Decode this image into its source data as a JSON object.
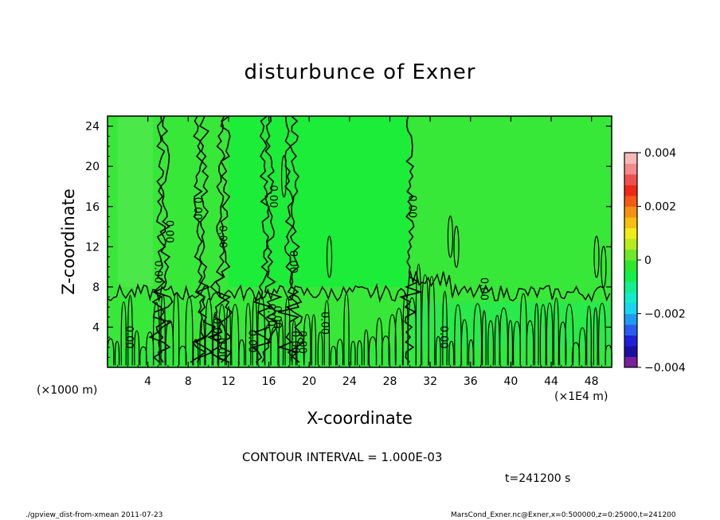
{
  "chart_data": {
    "type": "heatmap",
    "title": "disturbunce of Exner",
    "xlabel": "X-coordinate",
    "ylabel": "Z-coordinate",
    "x_units": "(×1E4 m)",
    "y_units": "(×1000 m)",
    "xlim": [
      0,
      50
    ],
    "ylim": [
      0,
      25
    ],
    "x_ticks": [
      "4",
      "8",
      "12",
      "16",
      "20",
      "24",
      "28",
      "32",
      "36",
      "40",
      "44",
      "48"
    ],
    "y_ticks": [
      "4",
      "8",
      "12",
      "16",
      "20",
      "24"
    ],
    "colorbar": {
      "range": [
        -0.004,
        0.004
      ],
      "tick_labels": [
        "0.004",
        "0.002",
        "0",
        "−0.002",
        "−0.004"
      ],
      "colors": [
        "#7a1f9e",
        "#1a0fa0",
        "#2020d8",
        "#2a5cf0",
        "#1e9cf5",
        "#18d5f0",
        "#12ecc8",
        "#10f090",
        "#13f04a",
        "#2ce82c",
        "#6fe82a",
        "#b4ec1e",
        "#f0ec18",
        "#f5c010",
        "#f79010",
        "#f55a14",
        "#f02818",
        "#f05050",
        "#f48a8a",
        "#f8b8b8"
      ]
    },
    "contour_labels": [
      "0.00",
      "0.00",
      "0.00",
      "0.00",
      "0.00",
      "0.00",
      "0.00",
      "0.00",
      "0.00",
      "0.00",
      "0.00",
      "0.00",
      "0.00",
      "0.00",
      "0.00",
      "0.00",
      "0.00",
      "0.00"
    ],
    "contour_interval_text": "CONTOUR INTERVAL = 1.000E-03",
    "time_text": "t=241200 s"
  },
  "footer": {
    "left": "./gpview_dist-from-xmean  2011-07-23",
    "right": "MarsCond_Exner.nc@Exner,x=0:500000,z=0:25000,t=241200"
  }
}
